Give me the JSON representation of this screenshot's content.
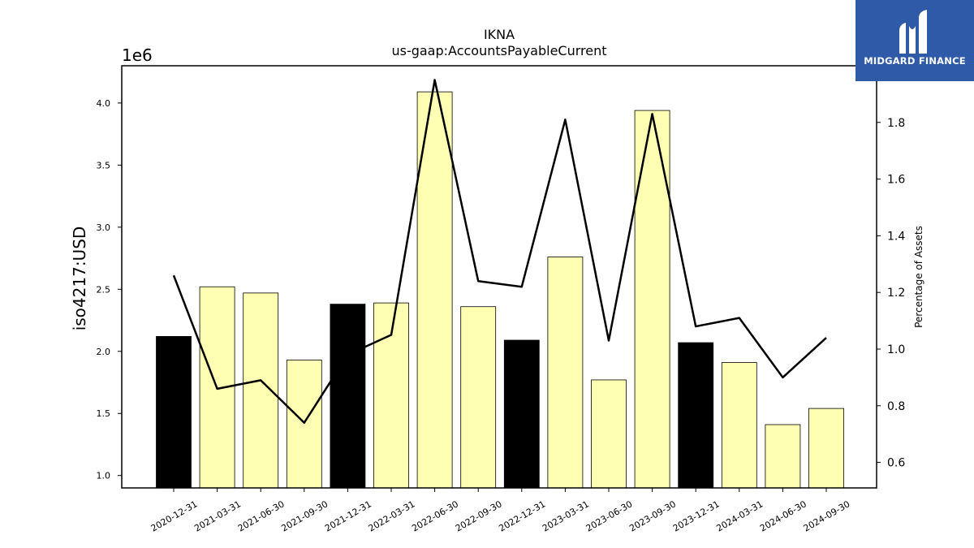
{
  "chart_data": {
    "type": "bar",
    "title": "IKNA",
    "subtitle": "us-gaap:AccountsPayableCurrent",
    "ylabel": "iso4217:USD",
    "y_multiplier_label": "1e6",
    "y2label": "Percentage of Assets",
    "ylim": [
      0.9,
      4.3
    ],
    "y2lim": [
      0.51,
      2.0
    ],
    "yticks": [
      "1.0",
      "1.5",
      "2.0",
      "2.5",
      "3.0",
      "3.5",
      "4.0"
    ],
    "y2ticks": [
      "0.6",
      "0.8",
      "1.0",
      "1.2",
      "1.4",
      "1.6",
      "1.8"
    ],
    "categories": [
      "2020-12-31",
      "2021-03-31",
      "2021-06-30",
      "2021-09-30",
      "2021-12-31",
      "2022-03-31",
      "2022-06-30",
      "2022-09-30",
      "2022-12-31",
      "2023-03-31",
      "2023-06-30",
      "2023-09-30",
      "2023-12-31",
      "2024-03-31",
      "2024-06-30",
      "2024-09-30"
    ],
    "series": [
      {
        "kind": "bar",
        "values": [
          2.12,
          2.52,
          2.47,
          1.93,
          2.38,
          2.39,
          4.09,
          2.36,
          2.09,
          2.76,
          1.77,
          3.94,
          2.07,
          1.91,
          1.41,
          1.54
        ],
        "colors": [
          "#000000",
          "#ffffb3",
          "#ffffb3",
          "#ffffb3",
          "#000000",
          "#ffffb3",
          "#ffffb3",
          "#ffffb3",
          "#000000",
          "#ffffb3",
          "#ffffb3",
          "#ffffb3",
          "#000000",
          "#ffffb3",
          "#ffffb3",
          "#ffffb3"
        ]
      },
      {
        "kind": "line",
        "axis": "right",
        "color": "#000000",
        "values": [
          1.26,
          0.86,
          0.89,
          0.74,
          0.98,
          1.05,
          1.95,
          1.24,
          1.22,
          1.81,
          1.03,
          1.83,
          1.08,
          1.11,
          0.9,
          1.04
        ]
      }
    ],
    "grid": false
  },
  "logo": {
    "text": "MIDGARD FINANCE",
    "background": "#2f5aa8"
  }
}
